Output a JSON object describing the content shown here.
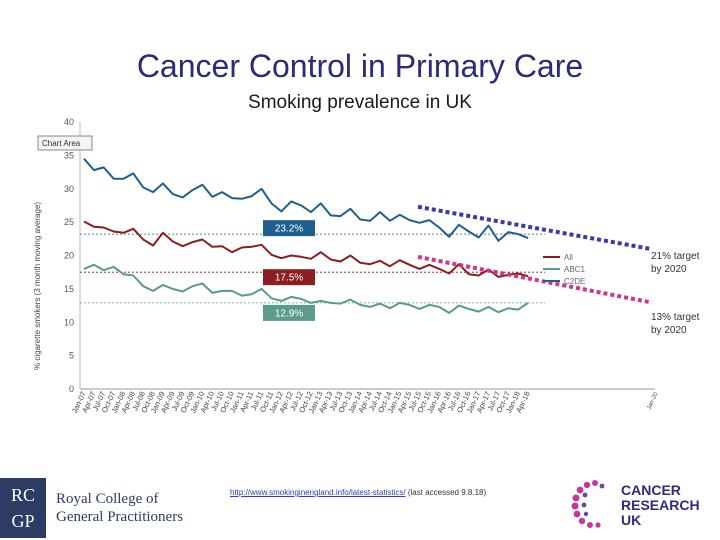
{
  "header": {
    "title": "Cancer Control in Primary Care",
    "subtitle": "Smoking prevalence in UK"
  },
  "chart_area_button": "Chart Area",
  "chart_data": {
    "type": "line",
    "ylabel": "% cigarette smokers (3 month moving average)",
    "ylim": [
      0,
      40
    ],
    "yticks": [
      0,
      5,
      10,
      15,
      20,
      25,
      30,
      35,
      40
    ],
    "grid": false,
    "xticks": [
      "Jan-07",
      "Apr-07",
      "Jul-07",
      "Oct-07",
      "Jan-08",
      "Apr-08",
      "Jul-08",
      "Oct-08",
      "Jan-09",
      "Apr-09",
      "Jul-09",
      "Oct-09",
      "Jan-10",
      "Apr-10",
      "Jul-10",
      "Oct-10",
      "Jan-11",
      "Apr-11",
      "Jul-11",
      "Oct-11",
      "Jan-12",
      "Apr-12",
      "Jul-12",
      "Oct-12",
      "Jan-13",
      "Apr-13",
      "Jul-13",
      "Oct-13",
      "Jan-14",
      "Apr-14",
      "Jul-14",
      "Oct-14",
      "Jan-15",
      "Apr-15",
      "Jul-15",
      "Oct-15",
      "Jan-16",
      "Apr-16",
      "Jul-16",
      "Oct-16",
      "Jan-17",
      "Apr-17",
      "Jul-17",
      "Oct-17",
      "Jan-18",
      "Apr-18"
    ],
    "series": [
      {
        "name": "C2DE",
        "color": "#1f5f8f",
        "values": [
          34.5,
          32.8,
          33.2,
          31.5,
          31.5,
          32.3,
          30.2,
          29.5,
          30.8,
          29.2,
          28.7,
          29.8,
          30.6,
          28.8,
          29.5,
          28.6,
          28.5,
          28.9,
          30.0,
          27.8,
          26.6,
          28.1,
          27.5,
          26.5,
          27.8,
          26.0,
          25.9,
          27.0,
          25.4,
          25.2,
          26.5,
          25.2,
          26.1,
          25.3,
          24.9,
          25.3,
          24.2,
          22.8,
          24.6,
          23.6,
          22.7,
          24.5,
          22.2,
          23.5,
          23.2,
          22.6
        ]
      },
      {
        "name": "All",
        "color": "#8b1e1e",
        "values": [
          25.1,
          24.3,
          24.2,
          23.6,
          23.4,
          24.0,
          22.4,
          21.5,
          23.4,
          22.1,
          21.4,
          22.0,
          22.4,
          21.3,
          21.4,
          20.5,
          21.2,
          21.3,
          21.6,
          20.1,
          19.6,
          20.0,
          19.8,
          19.5,
          20.5,
          19.4,
          19.1,
          20.0,
          18.9,
          18.7,
          19.2,
          18.4,
          19.3,
          18.6,
          18.0,
          18.6,
          18.0,
          17.3,
          18.7,
          17.2,
          17.0,
          17.9,
          16.8,
          17.1,
          17.3,
          16.9
        ]
      },
      {
        "name": "ABC1",
        "color": "#5a9b8b",
        "values": [
          18.0,
          18.6,
          17.8,
          18.3,
          17.2,
          17.0,
          15.4,
          14.7,
          15.6,
          15.0,
          14.6,
          15.4,
          15.8,
          14.4,
          14.7,
          14.7,
          14.0,
          14.2,
          15.0,
          13.6,
          13.2,
          13.8,
          13.5,
          12.9,
          13.2,
          12.9,
          12.8,
          13.4,
          12.6,
          12.3,
          12.8,
          12.1,
          12.9,
          12.6,
          12.0,
          12.6,
          12.3,
          11.4,
          12.5,
          12.0,
          11.6,
          12.3,
          11.5,
          12.1,
          11.9,
          12.9
        ]
      }
    ],
    "reference_lines": [
      {
        "value": 23.2,
        "label": "23.2%"
      },
      {
        "value": 17.5,
        "label": "17.5%"
      },
      {
        "value": 12.9,
        "label": "12.9%"
      }
    ],
    "targets": [
      {
        "label": "21% target by 2020",
        "from": 27.3,
        "to": 21
      },
      {
        "label": "13% target by 2020",
        "from": 19.8,
        "to": 13
      }
    ],
    "legend": [
      "All",
      "ABC1",
      "C2DE"
    ],
    "legend_position": "right",
    "colors": {
      "all": "#8b1e1e",
      "abc1": "#5a9b8b",
      "c2de": "#1f5f8f",
      "target": "#3a3aa8",
      "target_pink": "#d4338a"
    }
  },
  "targets": {
    "c2de_line1": "21% target",
    "c2de_line2": "by 2020",
    "abc1_line1": "13% target",
    "abc1_line2": "by 2020"
  },
  "footer": {
    "link": "http://www.smokinginengland.info/latest-statistics/",
    "note": " (last accessed 9.8.18)"
  },
  "logos": {
    "rcgp_letters1": "RC",
    "rcgp_letters2": "GP",
    "rcgp_name1": "Royal College of",
    "rcgp_name2": "General Practitioners",
    "cruk1": "CANCER",
    "cruk2": "RESEARCH",
    "cruk3": "UK"
  },
  "stray_label": "Jan-20"
}
